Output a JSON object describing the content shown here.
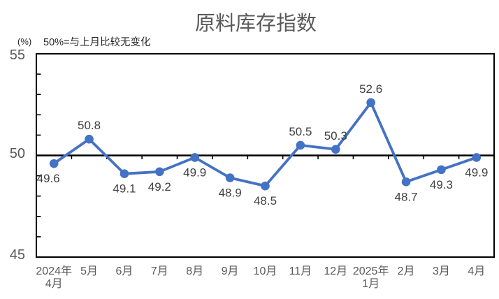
{
  "page": {
    "background": "#ffffff"
  },
  "chart_data": {
    "type": "line",
    "title": "原料库存指数",
    "unit_label": "(%)",
    "note": "50%=与上月比较无变化",
    "categories": [
      "2024年\n4月",
      "5月",
      "6月",
      "7月",
      "8月",
      "9月",
      "10月",
      "11月",
      "12月",
      "2025年\n1月",
      "2月",
      "3月",
      "4月"
    ],
    "values": [
      49.6,
      50.8,
      49.1,
      49.2,
      49.9,
      48.9,
      48.5,
      50.5,
      50.3,
      52.6,
      48.7,
      49.3,
      49.9
    ],
    "label_positions": [
      "below-left",
      "above",
      "below",
      "below",
      "below",
      "below",
      "below",
      "above",
      "above",
      "above",
      "below",
      "below",
      "below"
    ],
    "ylim": [
      45,
      55
    ],
    "yticks": [
      "55",
      "50",
      "45"
    ],
    "minor_tick_step": 1,
    "axis_crosses_at": 50,
    "grid": false,
    "legend": "none",
    "colors": {
      "series": "#4472C4",
      "data_label": "#404040",
      "axis": "#000000",
      "tick_label": "#595959",
      "title": "#595959",
      "note": "#262626"
    }
  }
}
